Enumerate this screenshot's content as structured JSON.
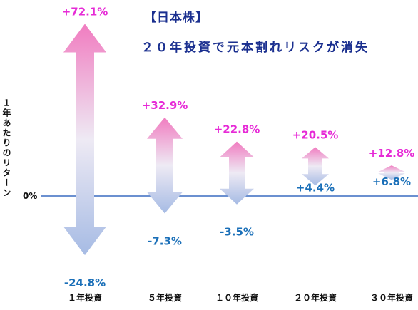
{
  "title": "【日本株】",
  "subtitle": "２０年投資で元本割れリスクが消失",
  "chart_data": {
    "type": "range-arrow",
    "ylabel": "１年あたりのリターン",
    "zero_label": "0%",
    "categories": [
      "１年投資",
      "５年投資",
      "１０年投資",
      "２０年投資",
      "３０年投資"
    ],
    "max_values": [
      72.1,
      32.9,
      22.8,
      20.5,
      12.8
    ],
    "min_values": [
      -24.8,
      -7.3,
      -3.5,
      4.4,
      6.8
    ],
    "max_labels": [
      "+72.1%",
      "+32.9%",
      "+22.8%",
      "+20.5%",
      "+12.8%"
    ],
    "min_labels": [
      "-24.8%",
      "-7.3%",
      "-3.5%",
      "+4.4%",
      "+6.8%"
    ],
    "colors": {
      "max_text": "#e62ad6",
      "min_text": "#1a6fb8",
      "arrow_top": "#f07cc0",
      "arrow_mid": "#eeeaf4",
      "arrow_bottom": "#a6bbe4",
      "zero_line": "#3a6cc0",
      "title": "#1a2f8f"
    }
  }
}
